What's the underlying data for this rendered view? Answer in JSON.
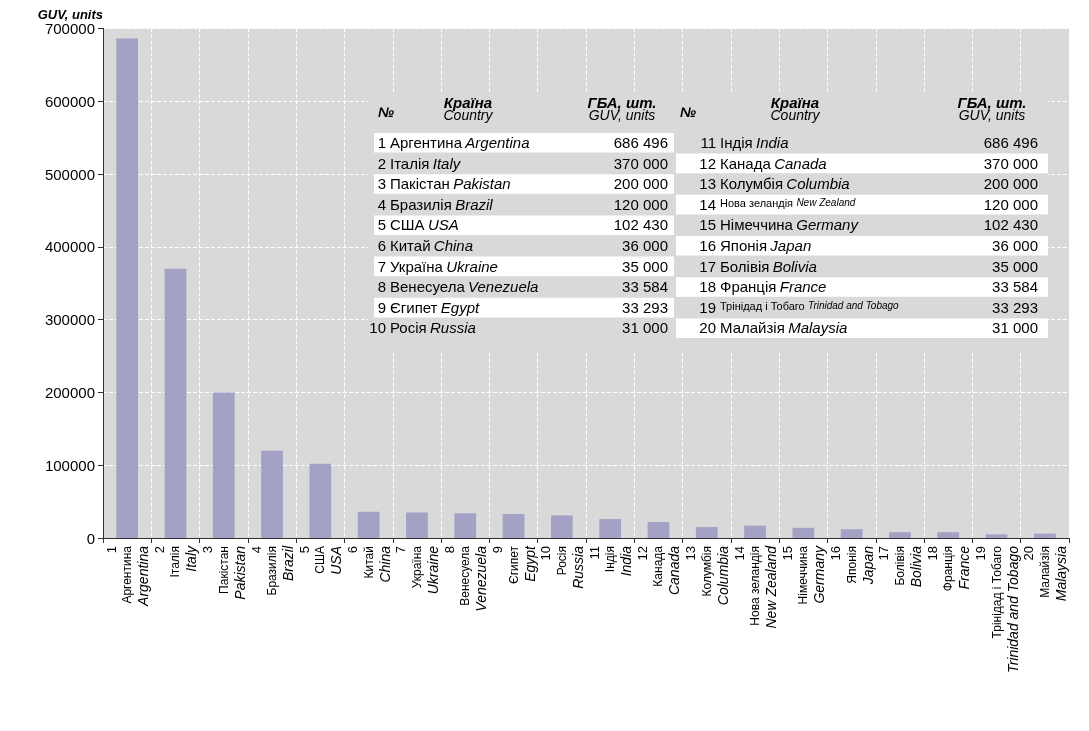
{
  "chart_data": {
    "type": "bar",
    "ylabel": "GUV, units",
    "categories": [
      "1\nАргентина\nArgentina",
      "2\nІталія\nItaly",
      "3\nПакістан\nPakistan",
      "4\nБразилія\nBrazil",
      "5\nСША\nUSA",
      "6\nКитай\nChina",
      "7\nУкраїна\nUkraine",
      "8\nВенесуела\nVenezuela",
      "9\nЄгипет\nEgypt",
      "10\nРосія\nRussia",
      "11\nІндія\nIndia",
      "12\nКанада\nCanada",
      "13\nКолумбія\nColumbia",
      "14\nНова зеландія\nNew Zealand",
      "15\nНімеччина\nGermany",
      "16\nЯпонія\nJapan",
      "17\nБолівія\nBolivia",
      "18\nФранція\nFrance",
      "19\nТрінідад і Тобаго\nTrinidad and Tobago",
      "20\nМалайзія\nMalaysia"
    ],
    "values": [
      686000,
      370000,
      200000,
      120000,
      102000,
      36000,
      35000,
      34000,
      33000,
      31000,
      26000,
      22000,
      15000,
      17000,
      14000,
      12000,
      8000,
      8000,
      5000,
      6000
    ],
    "color": "#a4a2c4",
    "ylim": [
      0,
      700000
    ],
    "yticks": [
      0,
      100000,
      200000,
      300000,
      400000,
      500000,
      600000,
      700000
    ],
    "grid": true,
    "annotations": [
      "№\tКраїна\nCountry\tГБА, шт.\nGUV, units",
      "№\tКраїна\nCountry\tГБА, шт.\nGUV, units",
      "1\tАргентина\nArgentina\t686 496",
      "2\tІталія\nItaly\t370 000",
      "3\tПакістан\nPakistan\t200 000",
      "4\tБразилія\nBrazil\t120 000",
      "5\tСША\nUSA\t102 430",
      "6\tКитай\nChina\t36 000",
      "7\tУкраїна\nUkraine\t35 000",
      "8\tВенесуела\nVenezuela\t33 584",
      "9\tЄгипет\nEgypt\t33 293",
      "10\tРосія\nRussia\t31 000",
      "11\tІндія\nIndia\t686 496",
      "12\tКанада\nCanada\t370 000",
      "13\tКолумбія\nColumbia\t200 000",
      "14\tНова зеландія\nNew Zealand\t120 000",
      "15\tНімеччина\nGermany\t102 430",
      "16\tЯпонія\nJapan\t36 000",
      "17\tБолівія\nBolivia\t35 000",
      "18\tФранція\nFrance\t33 584",
      "19\tТрінідад і Тобаго\nTrinidad and Tobago\t33 293",
      "20\tМалайзія\nMalaysia\t31 000"
    ]
  }
}
